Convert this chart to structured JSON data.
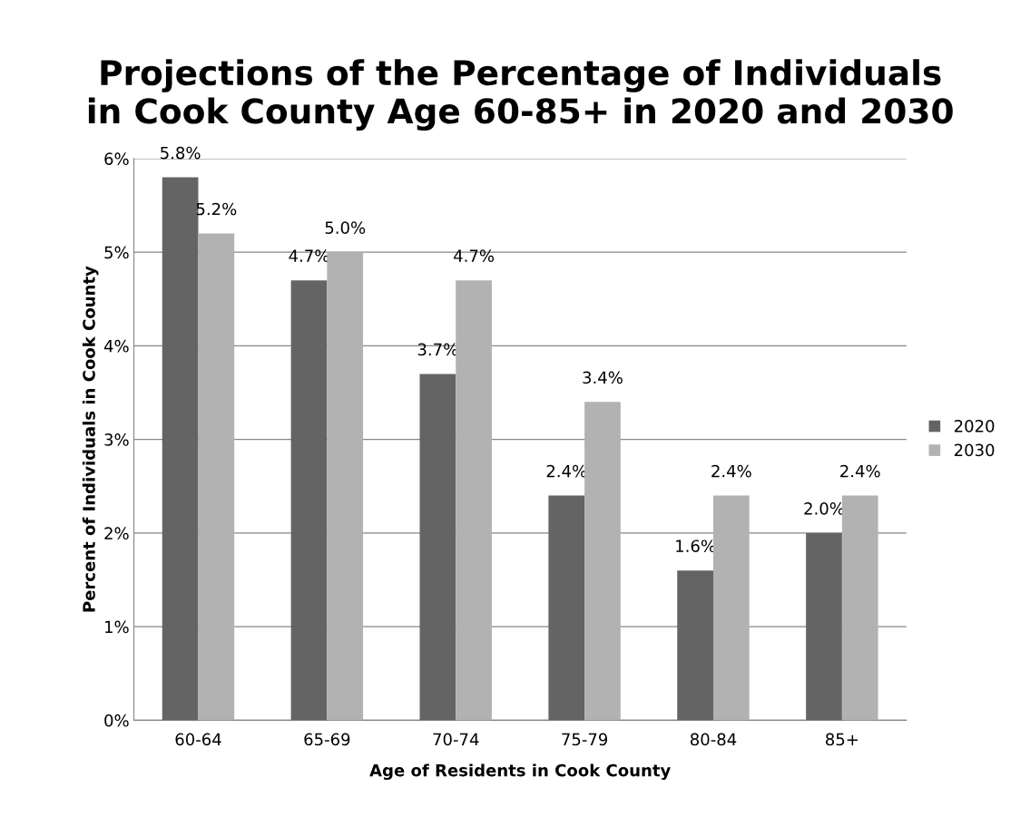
{
  "chart_data": {
    "type": "bar",
    "title": "Projections of the Percentage of Individuals\nin Cook County Age 60-85+ in 2020 and 2030",
    "xlabel": "Age of Residents in Cook County",
    "ylabel": "Percent of Individuals in Cook County",
    "categories": [
      "60-64",
      "65-69",
      "70-74",
      "75-79",
      "80-84",
      "85+"
    ],
    "series": [
      {
        "name": "2020",
        "color": "#646464",
        "values": [
          5.8,
          4.7,
          3.7,
          2.4,
          1.6,
          2.0
        ],
        "value_labels": [
          "5.8%",
          "4.7%",
          "3.7%",
          "2.4%",
          "1.6%",
          "2.0%"
        ]
      },
      {
        "name": "2030",
        "color": "#b2b2b2",
        "values": [
          5.2,
          5.0,
          4.7,
          3.4,
          2.4,
          2.4
        ],
        "value_labels": [
          "5.2%",
          "5.0%",
          "4.7%",
          "3.4%",
          "2.4%",
          "2.4%"
        ]
      }
    ],
    "ylim": [
      0,
      6
    ],
    "yticks": [
      {
        "value": 0,
        "label": "0%"
      },
      {
        "value": 1,
        "label": "1%"
      },
      {
        "value": 2,
        "label": "2%"
      },
      {
        "value": 3,
        "label": "3%"
      },
      {
        "value": 4,
        "label": "4%"
      },
      {
        "value": 5,
        "label": "5%"
      },
      {
        "value": 6,
        "label": "6%"
      }
    ],
    "grid": "y",
    "legend": "right"
  }
}
